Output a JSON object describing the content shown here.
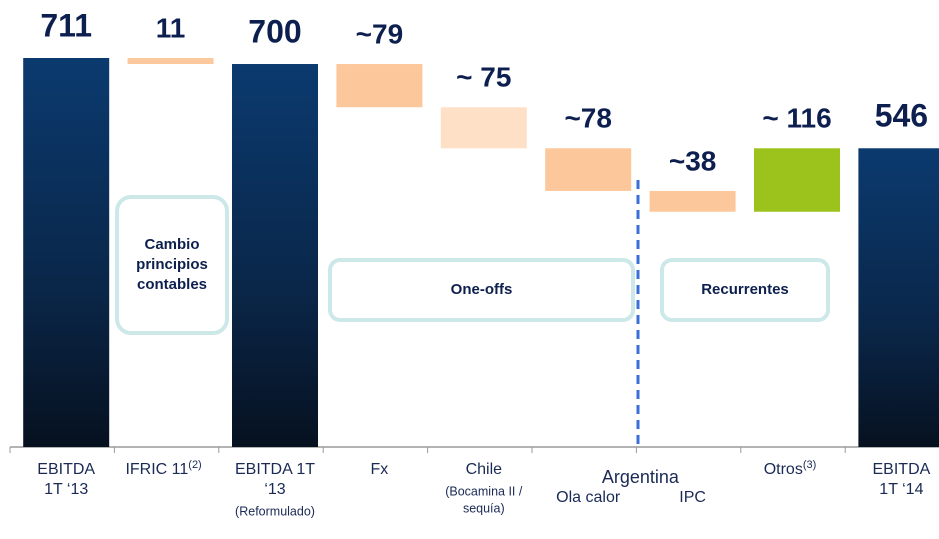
{
  "chart_data": {
    "type": "waterfall",
    "categories": [
      [
        "EBITDA",
        "1T ‘13"
      ],
      [
        "IFRIC 11"
      ],
      [
        "EBITDA 1T",
        "‘13"
      ],
      [
        "Fx"
      ],
      [
        "Chile"
      ],
      [
        "Ola calor"
      ],
      [
        "IPC"
      ],
      [
        "Otros"
      ],
      [
        "EBITDA",
        "1T ‘14"
      ]
    ],
    "superscripts": [
      null,
      "(2)",
      null,
      null,
      null,
      null,
      null,
      "(3)",
      null
    ],
    "subnotes": [
      null,
      null,
      [
        "(Reformulado)"
      ],
      null,
      [
        "(Bocamina II /",
        "sequía)"
      ],
      null,
      null,
      null,
      null
    ],
    "groups": [
      {
        "label": "Argentina",
        "categories": [
          5,
          6
        ]
      }
    ],
    "measure": [
      "total",
      "relative",
      "total",
      "relative",
      "relative",
      "relative",
      "relative",
      "relative",
      "total"
    ],
    "values": [
      711,
      -11,
      700,
      -79,
      -75,
      -78,
      -38,
      116,
      546
    ],
    "value_labels": [
      "711",
      "11",
      "700",
      "~79",
      "~ 75",
      "~78",
      "~38",
      "~ 116",
      "546"
    ],
    "colors": [
      "url(#navy)",
      "#fcc99f",
      "url(#navy)",
      "#fcc79a",
      "#fde0c6",
      "#fcc79a",
      "#fcc79a",
      "#9bc31c",
      "url(#navy)"
    ],
    "annotations": [
      [
        "Cambio",
        "principios",
        "contables"
      ],
      [
        "One-offs"
      ],
      [
        "Recurrentes"
      ]
    ]
  }
}
